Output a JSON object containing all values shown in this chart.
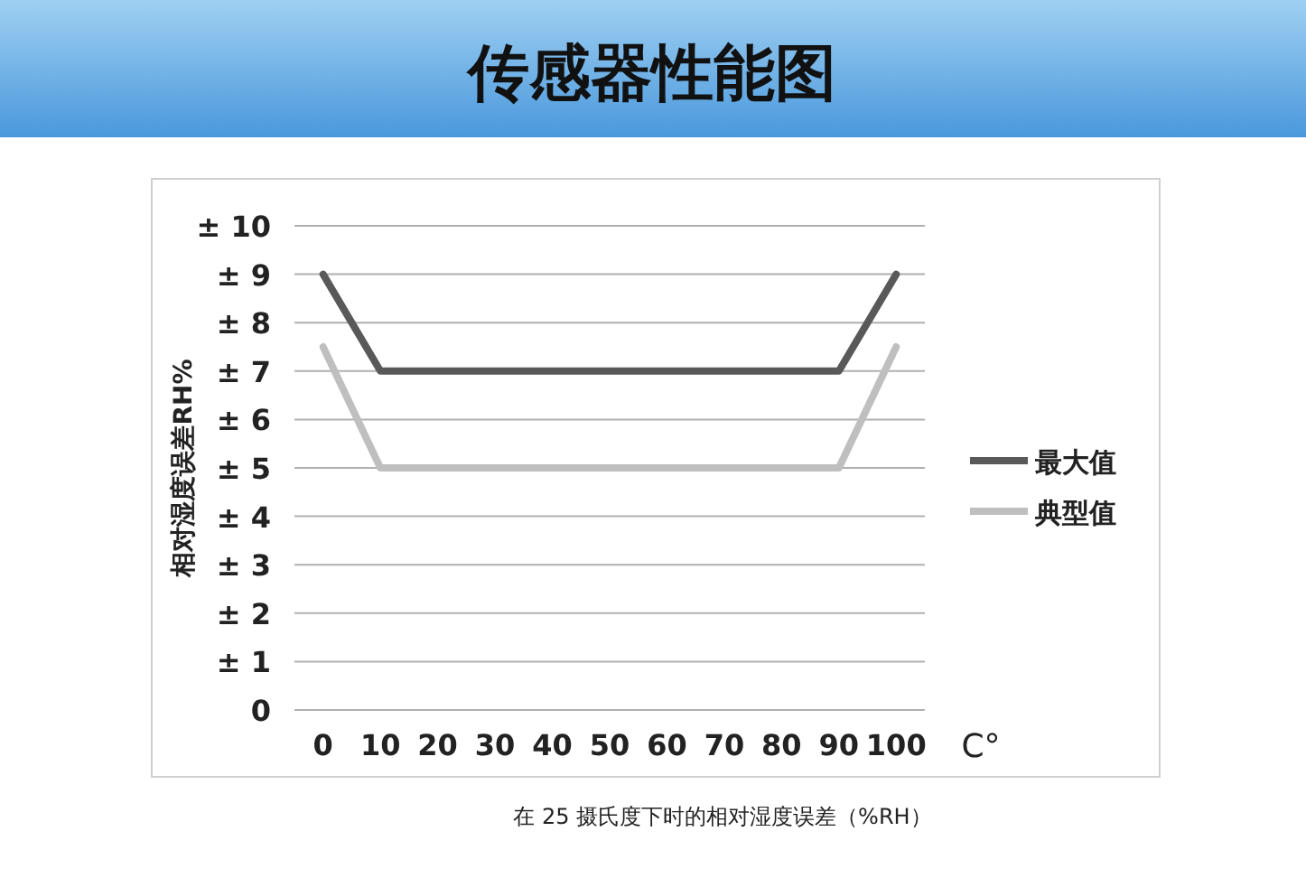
{
  "chart_data": {
    "type": "line",
    "title": "传感器性能图",
    "xlabel": "C°",
    "ylabel": "相对湿度误差RH%",
    "x": [
      0,
      10,
      90,
      100
    ],
    "series": [
      {
        "name": "最大值",
        "color": "#595959",
        "values": [
          9,
          7,
          7,
          9
        ]
      },
      {
        "name": "典型值",
        "color": "#bfbfbf",
        "values": [
          7.5,
          5,
          5,
          7.5
        ]
      }
    ],
    "xlim": [
      -5,
      105
    ],
    "xticks": [
      0,
      10,
      20,
      30,
      40,
      50,
      60,
      70,
      80,
      90,
      100
    ],
    "ylim": [
      0,
      10
    ],
    "yticks": [
      0,
      {
        "value": 1,
        "label": "± 1"
      },
      {
        "value": 2,
        "label": "± 2"
      },
      {
        "value": 3,
        "label": "± 3"
      },
      {
        "value": 4,
        "label": "± 4"
      },
      {
        "value": 5,
        "label": "± 5"
      },
      {
        "value": 6,
        "label": "± 6"
      },
      {
        "value": 7,
        "label": "± 7"
      },
      {
        "value": 8,
        "label": "± 8"
      },
      {
        "value": 9,
        "label": "± 9"
      },
      {
        "value": 10,
        "label": "± 10"
      }
    ],
    "grid": "y",
    "legend": "right",
    "marker": "none",
    "line_style": "solid",
    "annotations": [
      "在 25 摄氏度下时的相对湿度误差（%RH）"
    ]
  }
}
